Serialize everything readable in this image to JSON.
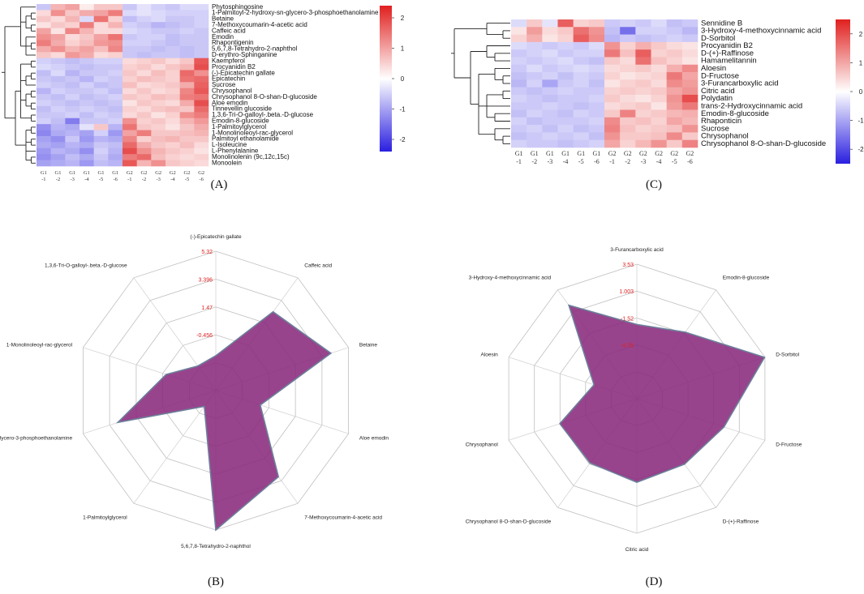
{
  "chart_data": [
    {
      "panel": "(A)",
      "type": "heatmap",
      "columns": [
        "G1 -1",
        "G1 -2",
        "G1 -3",
        "G1 -4",
        "G1 -5",
        "G1 -6",
        "G2 -1",
        "G2 -2",
        "G2 -3",
        "G2 -4",
        "G2 -5",
        "G2 -6"
      ],
      "rows": [
        "Phytosphingosine",
        "1-Palmitoyl-2-hydroxy-sn-glycero-3-phosphoethanolamine",
        "Betaine",
        "7-Methoxycoumarin-4-acetic acid",
        "Caffeic acid",
        "Emodin",
        "Rhapontigenin",
        "5,6,7,8-Tetrahydro-2-naphthol",
        "D-erythro-Sphinganine",
        "Kaempferol",
        "Procyanidin B2",
        "(-)-Epicatechin gallate",
        "Epicatechin",
        "Sucrose",
        "Chrysophanol",
        "Chrysophanol 8-O-shan-D-glucoside",
        "Aloe emodin",
        "Tinnevellin glucoside",
        "1,3,6-Tri-O-galloyl-.beta.-D-glucose",
        "Emodin-8-glucoside",
        "1-Palmitoylglycerol",
        "1-Monolinoleoyl-rac-glycerol",
        "Palmitoyl ethanolamide",
        "L-Isoleucine",
        "L-Phenylalanine",
        "Monolinolenin (9c,12c,15c)",
        "Monoolein"
      ],
      "values": [
        [
          -0.6,
          0.8,
          1.0,
          0.2,
          0.6,
          0.6,
          -0.6,
          -0.3,
          -0.5,
          -0.6,
          -0.4,
          -0.4
        ],
        [
          0.4,
          1.2,
          0.6,
          0.9,
          1.0,
          1.4,
          -0.4,
          -0.3,
          -0.4,
          -0.5,
          -0.5,
          -0.5
        ],
        [
          0.6,
          0.4,
          0.8,
          -0.4,
          1.5,
          0.5,
          -0.7,
          -0.5,
          -0.4,
          -0.6,
          -0.6,
          -0.5
        ],
        [
          0.3,
          0.6,
          0.5,
          1.4,
          0.4,
          0.8,
          -0.5,
          -0.6,
          -0.8,
          -0.7,
          -0.6,
          -0.5
        ],
        [
          1.0,
          0.3,
          1.3,
          0.8,
          0.4,
          0.4,
          -0.4,
          -0.5,
          -0.6,
          -0.6,
          -0.5,
          -0.6
        ],
        [
          1.2,
          1.0,
          0.4,
          0.6,
          1.0,
          1.5,
          -0.6,
          -0.5,
          -0.5,
          -0.7,
          -0.6,
          -0.6
        ],
        [
          1.4,
          0.9,
          0.5,
          0.7,
          1.1,
          1.2,
          -0.5,
          -0.5,
          -0.6,
          -0.7,
          -0.6,
          -0.6
        ],
        [
          0.9,
          1.2,
          0.8,
          1.0,
          0.7,
          1.3,
          -0.6,
          -0.6,
          -0.7,
          -0.6,
          -0.7,
          -0.6
        ],
        [
          0.6,
          0.4,
          1.1,
          0.9,
          0.4,
          0.5,
          -0.6,
          -0.7,
          -0.6,
          -0.6,
          -0.7,
          -0.6
        ],
        [
          -0.5,
          -0.6,
          -0.7,
          -0.6,
          -0.5,
          -0.5,
          0.4,
          0.5,
          0.6,
          0.4,
          0.6,
          1.8
        ],
        [
          -0.4,
          -0.5,
          -0.6,
          -0.7,
          -0.6,
          -0.6,
          0.5,
          0.6,
          0.4,
          0.6,
          0.8,
          1.9
        ],
        [
          -0.7,
          -0.4,
          -0.8,
          -0.6,
          -0.6,
          -0.5,
          0.6,
          0.4,
          0.7,
          0.5,
          1.6,
          1.2
        ],
        [
          -0.6,
          -0.7,
          -0.6,
          -0.8,
          -0.5,
          -0.6,
          0.5,
          0.7,
          0.6,
          0.5,
          1.5,
          1.6
        ],
        [
          -0.5,
          -0.6,
          -0.7,
          -0.5,
          -0.7,
          -0.6,
          0.7,
          0.4,
          0.5,
          0.6,
          0.9,
          1.7
        ],
        [
          -0.8,
          -0.5,
          -0.6,
          -0.6,
          -0.5,
          -0.7,
          0.4,
          0.6,
          0.4,
          0.5,
          1.3,
          1.8
        ],
        [
          -0.6,
          -0.7,
          -0.5,
          -0.7,
          -0.6,
          -0.5,
          0.6,
          0.5,
          0.7,
          0.6,
          1.4,
          1.5
        ],
        [
          -0.5,
          -0.6,
          -0.7,
          -0.6,
          -0.7,
          -0.6,
          0.3,
          0.6,
          0.5,
          0.4,
          0.9,
          1.9
        ],
        [
          -0.7,
          -0.5,
          -0.6,
          -0.5,
          -0.6,
          -0.7,
          0.5,
          0.4,
          0.6,
          0.7,
          0.6,
          1.6
        ],
        [
          -0.6,
          -0.6,
          -0.5,
          -0.7,
          -0.5,
          -0.6,
          0.4,
          0.6,
          0.3,
          0.5,
          1.2,
          1.4
        ],
        [
          -0.5,
          -0.7,
          -1.4,
          -0.6,
          -0.6,
          -0.5,
          1.2,
          0.5,
          0.6,
          0.4,
          0.8,
          1.1
        ],
        [
          -1.2,
          -0.8,
          -0.9,
          -0.3,
          0.6,
          -0.8,
          1.5,
          0.6,
          0.5,
          0.3,
          0.6,
          0.9
        ],
        [
          -1.3,
          -0.9,
          -0.8,
          -1.0,
          -0.5,
          -1.1,
          1.0,
          1.4,
          0.6,
          0.6,
          0.7,
          0.8
        ],
        [
          -1.0,
          -1.2,
          -0.6,
          -1.1,
          -0.8,
          -0.9,
          1.3,
          0.5,
          0.7,
          0.8,
          0.6,
          0.6
        ],
        [
          -0.9,
          -1.0,
          -0.8,
          -0.9,
          -0.6,
          -0.7,
          1.6,
          0.9,
          0.6,
          0.5,
          0.7,
          0.4
        ],
        [
          -1.1,
          -0.8,
          -0.9,
          -1.2,
          -0.5,
          -0.8,
          1.9,
          1.2,
          0.8,
          0.6,
          0.5,
          0.3
        ],
        [
          -1.2,
          -1.0,
          -0.7,
          -0.9,
          -0.6,
          -0.9,
          1.4,
          1.6,
          0.7,
          0.5,
          0.4,
          0.5
        ],
        [
          -1.0,
          -0.9,
          -0.8,
          -1.1,
          -0.7,
          -0.8,
          1.8,
          0.8,
          1.2,
          0.6,
          0.5,
          0.4
        ]
      ],
      "colorbar": {
        "min": -2.4,
        "max": 2.4,
        "ticks": [
          2,
          1,
          0,
          -1,
          -2
        ]
      },
      "colors": {
        "low": "#2a1fe0",
        "mid": "#ffffff",
        "high": "#e0201f"
      }
    },
    {
      "panel": "(C)",
      "type": "heatmap",
      "columns": [
        "G1 -1",
        "G1 -2",
        "G1 -3",
        "G1 -4",
        "G1 -5",
        "G1 -6",
        "G2 -1",
        "G2 -2",
        "G2 -3",
        "G2 -4",
        "G2 -5",
        "G2 -6"
      ],
      "rows": [
        "Sennidine B",
        "3-Hydroxy-4-methoxycinnamic acid",
        "D-Sorbitol",
        "Procyanidin B2",
        "D-(+)-Raffinose",
        "Hamamelitannin",
        "Aloesin",
        "D-Fructose",
        "3-Furancarboxylic acid",
        "Citric acid",
        "Polydatin",
        "trans-2-Hydroxycinnamic acid",
        "Emodin-8-glucoside",
        "Rhaponticin",
        "Sucrose",
        "Chrysophanol",
        "Chrysophanol 8-O-shan-D-glucoside"
      ],
      "values": [
        [
          -0.4,
          0.6,
          -0.3,
          1.8,
          0.5,
          0.6,
          -0.6,
          -0.5,
          -0.6,
          -0.4,
          -0.7,
          -0.6
        ],
        [
          0.3,
          1.1,
          0.4,
          0.6,
          1.6,
          1.2,
          -0.7,
          -1.6,
          -0.5,
          -0.5,
          -0.6,
          -0.8
        ],
        [
          0.5,
          0.9,
          0.3,
          0.5,
          1.8,
          1.3,
          -0.8,
          -0.6,
          -0.7,
          -0.6,
          -0.5,
          -0.6
        ],
        [
          -0.4,
          -0.5,
          -0.6,
          -0.5,
          -0.6,
          -0.4,
          1.2,
          0.5,
          0.9,
          0.6,
          0.4,
          0.3
        ],
        [
          -0.6,
          -0.5,
          -0.4,
          -0.6,
          -0.5,
          -0.5,
          1.5,
          0.7,
          1.8,
          0.5,
          0.6,
          0.4
        ],
        [
          -0.5,
          -0.6,
          -0.5,
          -0.4,
          -0.6,
          -0.7,
          0.6,
          0.4,
          1.6,
          0.7,
          0.5,
          0.3
        ],
        [
          -0.6,
          -0.4,
          -0.6,
          -0.5,
          -0.4,
          -0.5,
          0.4,
          0.5,
          0.6,
          0.4,
          0.9,
          1.3
        ],
        [
          -0.7,
          -0.6,
          -0.5,
          -0.7,
          -0.5,
          -0.6,
          0.5,
          0.3,
          0.4,
          0.5,
          1.5,
          1.0
        ],
        [
          -0.8,
          -0.5,
          -1.0,
          -0.6,
          -0.5,
          -0.7,
          0.3,
          0.5,
          0.6,
          0.4,
          1.3,
          1.1
        ],
        [
          -0.6,
          -0.7,
          -0.6,
          -0.5,
          -0.6,
          -0.6,
          0.5,
          0.6,
          0.5,
          0.6,
          1.0,
          1.2
        ],
        [
          -0.5,
          -0.6,
          -0.7,
          -0.6,
          -0.6,
          -0.5,
          0.6,
          0.4,
          0.3,
          0.5,
          1.2,
          2.0
        ],
        [
          -0.6,
          -0.6,
          -0.5,
          -0.6,
          -0.7,
          -0.6,
          0.4,
          0.5,
          0.6,
          0.3,
          1.1,
          1.5
        ],
        [
          -0.7,
          -0.5,
          -0.6,
          -0.7,
          -0.5,
          -0.6,
          0.6,
          1.4,
          0.5,
          0.6,
          0.8,
          0.9
        ],
        [
          -0.5,
          -0.7,
          -0.6,
          -0.6,
          -0.6,
          -0.5,
          1.3,
          0.6,
          0.7,
          0.5,
          1.0,
          0.8
        ],
        [
          -0.6,
          -0.5,
          -0.7,
          -0.5,
          -0.7,
          -0.6,
          1.4,
          0.7,
          0.5,
          0.6,
          0.7,
          1.2
        ],
        [
          -0.7,
          -0.6,
          -0.5,
          -0.6,
          -0.5,
          -0.7,
          1.2,
          0.6,
          0.6,
          0.7,
          1.3,
          0.6
        ],
        [
          -0.5,
          -0.6,
          -0.6,
          -0.7,
          -0.6,
          -0.5,
          1.0,
          0.5,
          0.8,
          1.2,
          0.6,
          1.4
        ]
      ],
      "colorbar": {
        "min": -2.5,
        "max": 2.5,
        "ticks": [
          2,
          1,
          0,
          -1,
          -2
        ]
      },
      "colors": {
        "low": "#2a1fe0",
        "mid": "#ffffff",
        "high": "#e0201f"
      }
    },
    {
      "panel": "(B)",
      "type": "radar",
      "categories": [
        "(-)-Epicatechin gallate",
        "Caffeic acid",
        "Betaine",
        "Aloe emodin",
        "7-Methoxycoumarin-4-acetic acid",
        "5,6,7,8-Tetrahydro-2-naphthol",
        "1-Palmitoylglycerol",
        "lmitoyl-2-hydroxy-sn-glycero-3-phosphoethanolamine",
        "1-Monolinoleoyl-rac-glycerol",
        "1,3,6-Tri-O-galloyl-.beta.-D-glucose"
      ],
      "values": [
        -0.456,
        3.0,
        4.3,
        0.2,
        3.5,
        5.32,
        -1.3,
        3.3,
        0.5,
        -0.7
      ],
      "axis_ticks": [
        "5.32",
        "3.396",
        "1.47",
        "-0.456"
      ],
      "range": [
        -2.382,
        5.32
      ],
      "fill": "#8a2a7c",
      "stroke": "#6d7f9b"
    },
    {
      "panel": "(D)",
      "type": "radar",
      "categories": [
        "3-Furancarboxylic acid",
        "Emodin-8-glucoside",
        "D-Sorbitol",
        "D-Fructose",
        "D-(+)-Raffinose",
        "Citric acid",
        "Chrysophanol 8-O-shan-D-glucoside",
        "Chrysophanol",
        "Aloesin",
        "3-Hydroxy-4-methoxycinnamic acid"
      ],
      "values": [
        -1.0,
        -0.4,
        3.5,
        0.3,
        -0.5,
        -0.3,
        -0.6,
        -0.5,
        -3.2,
        2.1
      ],
      "axis_ticks": [
        "3.53",
        "1.003",
        "-1.52",
        "-4.05"
      ],
      "range": [
        -6.58,
        3.53
      ],
      "fill": "#8a2a7c",
      "stroke": "#6d7f9b"
    }
  ],
  "panel_labels": {
    "a": "(A)",
    "b": "(B)",
    "c": "(C)",
    "d": "(D)"
  }
}
